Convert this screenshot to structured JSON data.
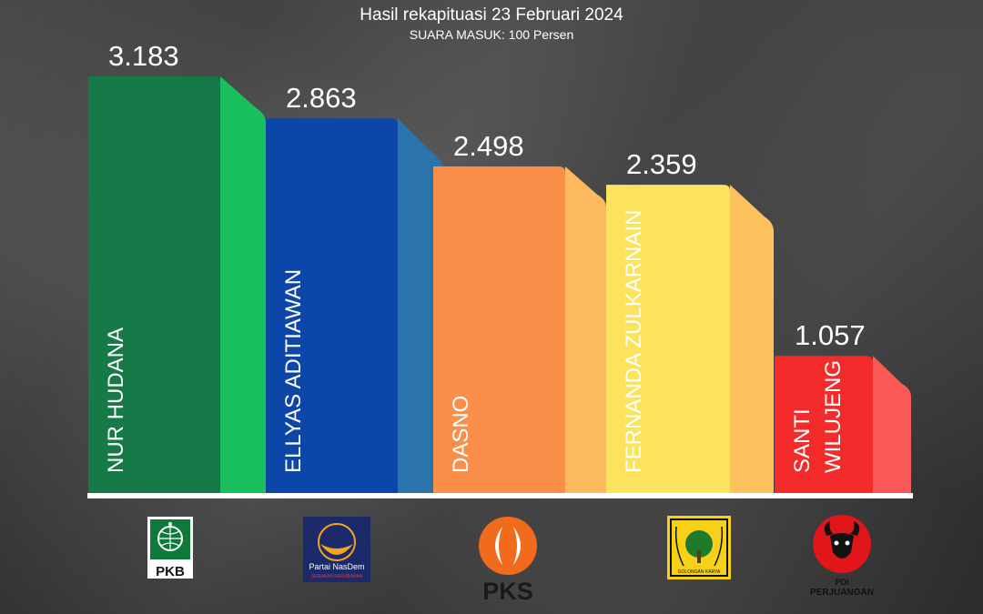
{
  "chart_data": {
    "type": "bar",
    "title": "Hasil rekapituasi 23 Februari 2024",
    "subtitle": "SUARA MASUK: 100 Persen",
    "categories": [
      "NUR HUDANA",
      "ELLYAS ADITIAWAN",
      "DASNO",
      "FERNANDA ZULKARNAIN",
      "SANTI WILUJENG"
    ],
    "values": [
      3183,
      2863,
      2498,
      2359,
      1057
    ],
    "value_labels": [
      "3.183",
      "2.863",
      "2.498",
      "2.359",
      "1.057"
    ],
    "name_lines": [
      [
        "NUR HUDANA"
      ],
      [
        "ELLYAS ADITIAWAN"
      ],
      [
        "DASNO"
      ],
      [
        "FERNANDA ZULKARNAIN"
      ],
      [
        "SANTI",
        "WILUJENG"
      ]
    ],
    "colors": [
      {
        "front": "#157a47",
        "side": "#19c05d"
      },
      {
        "front": "#0b46a8",
        "side": "#2a73ad"
      },
      {
        "front": "#fb8e48",
        "side": "#fcb95e"
      },
      {
        "front": "#fbe35e",
        "side": "#fbc25e"
      },
      {
        "front": "#f42b2b",
        "side": "#f95a57"
      }
    ],
    "ylim": [
      0,
      3500
    ]
  },
  "parties": [
    {
      "name": "PKB",
      "icon": "pkb-logo-icon"
    },
    {
      "name": "Partai NasDem",
      "tagline": "GERAKAN PERUBAHAN",
      "icon": "nasdem-logo-icon"
    },
    {
      "name": "PKS",
      "icon": "pks-logo-icon"
    },
    {
      "name": "GOLONGAN KARYA",
      "icon": "golkar-logo-icon"
    },
    {
      "name": "PDI",
      "name2": "PERJUANGAN",
      "icon": "pdi-perjuangan-logo-icon"
    }
  ]
}
